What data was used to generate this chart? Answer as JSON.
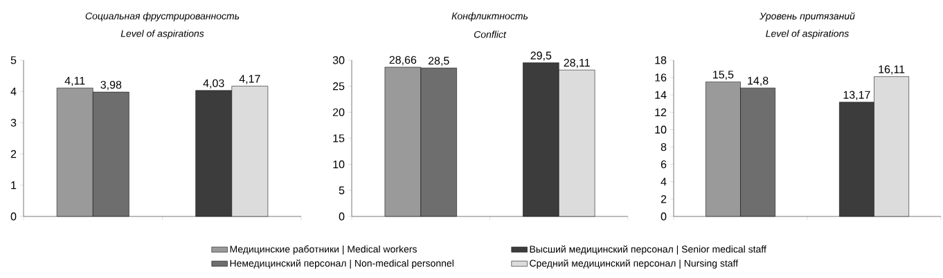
{
  "chart_data": [
    {
      "type": "bar",
      "title": "Социальная фрустрированность",
      "subtitle": "Level of aspirations",
      "categories": [
        null,
        null
      ],
      "ylim": [
        0,
        5
      ],
      "yticks": [
        0,
        1,
        2,
        3,
        4,
        5
      ],
      "data_labels": true,
      "series": [
        {
          "color": "#9a9a9a",
          "values": [
            4.11,
            null
          ],
          "value_labels": [
            "4,11",
            null
          ]
        },
        {
          "color": "#6e6e6e",
          "values": [
            3.98,
            null
          ],
          "value_labels": [
            "3,98",
            null
          ]
        },
        {
          "color": "#3c3c3c",
          "values": [
            null,
            4.03
          ],
          "value_labels": [
            null,
            "4,03"
          ]
        },
        {
          "color": "#dcdcdc",
          "values": [
            null,
            4.17
          ],
          "value_labels": [
            null,
            "4,17"
          ]
        }
      ]
    },
    {
      "type": "bar",
      "title": "Конфликтность",
      "subtitle": "Conflict",
      "categories": [
        null,
        null
      ],
      "ylim": [
        0,
        30
      ],
      "yticks": [
        0,
        5,
        10,
        15,
        20,
        25,
        30
      ],
      "data_labels": true,
      "legend": "bottom",
      "series": [
        {
          "name": "Медицинские работники | Medical workers",
          "color": "#9a9a9a",
          "values": [
            28.66,
            null
          ],
          "value_labels": [
            "28,66",
            null
          ]
        },
        {
          "name": "Немедицинский персонал | Non-medical personnel",
          "color": "#6e6e6e",
          "values": [
            28.5,
            null
          ],
          "value_labels": [
            "28,5",
            null
          ]
        },
        {
          "name": "Высший медицинский персонал | Senior medical staff",
          "color": "#3c3c3c",
          "values": [
            null,
            29.5
          ],
          "value_labels": [
            null,
            "29,5"
          ]
        },
        {
          "name": "Средний медицинский персонал | Nursing staff",
          "color": "#dcdcdc",
          "values": [
            null,
            28.11
          ],
          "value_labels": [
            null,
            "28,11"
          ]
        }
      ]
    },
    {
      "type": "bar",
      "title": "Уровень притязаний",
      "subtitle": "Level of aspirations",
      "categories": [
        null,
        null
      ],
      "ylim": [
        0,
        18
      ],
      "yticks": [
        0,
        2,
        4,
        6,
        8,
        10,
        12,
        14,
        16,
        18
      ],
      "data_labels": true,
      "series": [
        {
          "color": "#9a9a9a",
          "values": [
            15.5,
            null
          ],
          "value_labels": [
            "15,5",
            null
          ]
        },
        {
          "color": "#6e6e6e",
          "values": [
            14.8,
            null
          ],
          "value_labels": [
            "14,8",
            null
          ]
        },
        {
          "color": "#3c3c3c",
          "values": [
            null,
            13.17
          ],
          "value_labels": [
            null,
            "13,17"
          ]
        },
        {
          "color": "#dcdcdc",
          "values": [
            null,
            16.11
          ],
          "value_labels": [
            null,
            "16,11"
          ]
        }
      ]
    }
  ]
}
